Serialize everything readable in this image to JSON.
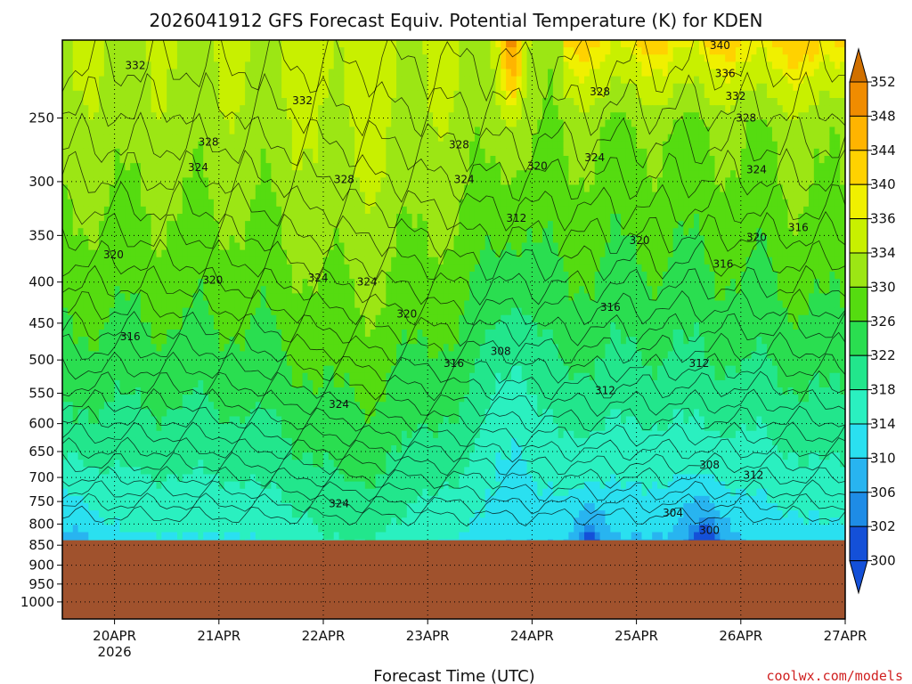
{
  "chart_data": {
    "type": "heatmap",
    "title": "2026041912 GFS Forecast Equiv. Potential Temperature (K) for KDEN",
    "xlabel": "Forecast Time (UTC)",
    "x_ticks": [
      "20APR",
      "21APR",
      "22APR",
      "23APR",
      "24APR",
      "25APR",
      "26APR",
      "27APR"
    ],
    "x_year_label": "2026",
    "x_range_days": [
      19.5,
      27.0
    ],
    "y_axis": "pressure (hPa), log scale",
    "y_ticks": [
      "250",
      "300",
      "350",
      "400",
      "450",
      "500",
      "550",
      "600",
      "650",
      "700",
      "750",
      "800",
      "850",
      "900",
      "950",
      "1000"
    ],
    "y_range": [
      200,
      1050
    ],
    "colorbar": {
      "labels": [
        "300",
        "302",
        "306",
        "310",
        "314",
        "318",
        "322",
        "326",
        "330",
        "334",
        "336",
        "340",
        "344",
        "348",
        "352"
      ],
      "colors": [
        "#1450d8",
        "#1e8ce6",
        "#28b4f0",
        "#2ae0f0",
        "#2af0c0",
        "#22e68c",
        "#2ade50",
        "#55dc10",
        "#9ce614",
        "#c8f000",
        "#f0f000",
        "#ffd200",
        "#ffb400",
        "#f08c00",
        "#d07000"
      ]
    },
    "ground_color": "#a0522d",
    "surface_pressure_hpa": 838,
    "credit": "coolwx.com/models",
    "contour_labels": [
      {
        "value": "332",
        "day": 20.2,
        "p": 215
      },
      {
        "value": "328",
        "day": 20.9,
        "p": 268
      },
      {
        "value": "324",
        "day": 20.8,
        "p": 288
      },
      {
        "value": "332",
        "day": 21.8,
        "p": 238
      },
      {
        "value": "328",
        "day": 22.2,
        "p": 298
      },
      {
        "value": "324",
        "day": 21.95,
        "p": 395
      },
      {
        "value": "324",
        "day": 22.42,
        "p": 400
      },
      {
        "value": "320",
        "day": 19.99,
        "p": 370
      },
      {
        "value": "320",
        "day": 20.94,
        "p": 398
      },
      {
        "value": "316",
        "day": 20.15,
        "p": 468
      },
      {
        "value": "320",
        "day": 22.8,
        "p": 438
      },
      {
        "value": "324",
        "day": 22.15,
        "p": 568
      },
      {
        "value": "324",
        "day": 22.15,
        "p": 755
      },
      {
        "value": "328",
        "day": 23.3,
        "p": 270
      },
      {
        "value": "324",
        "day": 23.35,
        "p": 298
      },
      {
        "value": "320",
        "day": 24.05,
        "p": 287
      },
      {
        "value": "312",
        "day": 23.85,
        "p": 333
      },
      {
        "value": "308",
        "day": 23.7,
        "p": 488
      },
      {
        "value": "316",
        "day": 23.25,
        "p": 505
      },
      {
        "value": "328",
        "day": 24.65,
        "p": 232
      },
      {
        "value": "324",
        "day": 24.6,
        "p": 280
      },
      {
        "value": "320",
        "day": 25.03,
        "p": 355
      },
      {
        "value": "316",
        "day": 24.75,
        "p": 430
      },
      {
        "value": "312",
        "day": 24.7,
        "p": 546
      },
      {
        "value": "340",
        "day": 25.8,
        "p": 203
      },
      {
        "value": "336",
        "day": 25.85,
        "p": 220
      },
      {
        "value": "332",
        "day": 25.95,
        "p": 235
      },
      {
        "value": "328",
        "day": 26.05,
        "p": 250
      },
      {
        "value": "324",
        "day": 26.15,
        "p": 290
      },
      {
        "value": "320",
        "day": 26.15,
        "p": 352
      },
      {
        "value": "316",
        "day": 26.55,
        "p": 342
      },
      {
        "value": "316",
        "day": 25.83,
        "p": 380
      },
      {
        "value": "312",
        "day": 25.6,
        "p": 505
      },
      {
        "value": "308",
        "day": 25.7,
        "p": 675
      },
      {
        "value": "312",
        "day": 26.12,
        "p": 695
      },
      {
        "value": "304",
        "day": 25.35,
        "p": 775
      },
      {
        "value": "300",
        "day": 25.7,
        "p": 815
      }
    ]
  }
}
